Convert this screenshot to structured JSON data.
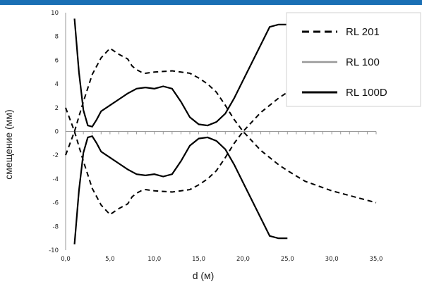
{
  "theme": {
    "top_bar_color": "#1a6fb4"
  },
  "chart_data": {
    "type": "line",
    "title": "",
    "xlabel": "d (м)",
    "ylabel": "смещение (мм)",
    "xlim": [
      0,
      35
    ],
    "ylim": [
      -10,
      10
    ],
    "x_ticks": [
      "0,0",
      "5,0",
      "10,0",
      "15,0",
      "20,0",
      "25,0",
      "30,0",
      "35,0"
    ],
    "y_ticks": [
      "10",
      "8",
      "6",
      "4",
      "2",
      "0",
      "-2",
      "-4",
      "-6",
      "-8",
      "-10"
    ],
    "grid": false,
    "legend_position": "top-right",
    "series": [
      {
        "name": "RL 201",
        "style": "dashed",
        "color": "#000000",
        "x": [
          0,
          0.5,
          1.0,
          2.0,
          3.0,
          4.0,
          5.0,
          6.0,
          7.0,
          7.5,
          8.0,
          8.5,
          9.0,
          10.0,
          12.0,
          14.0,
          15.0,
          16.0,
          17.0,
          18.0,
          18.5,
          19.0,
          19.5,
          20.0,
          21.0,
          22.0,
          23.0,
          24.0,
          25.0,
          27.0,
          30.0,
          33.0,
          35.0
        ],
        "y": [
          2.0,
          1.0,
          0.0,
          2.5,
          4.8,
          6.2,
          7.0,
          6.5,
          6.1,
          5.5,
          5.2,
          5.0,
          4.9,
          5.0,
          5.1,
          4.9,
          4.5,
          4.0,
          3.3,
          2.2,
          1.6,
          1.0,
          0.5,
          0.0,
          -0.8,
          -1.6,
          -2.2,
          -2.8,
          -3.3,
          -4.2,
          -5.0,
          -5.6,
          -6.0
        ],
        "mirrored": true
      },
      {
        "name": "RL 100",
        "style": "solid",
        "color": "#999999",
        "x": [],
        "y": []
      },
      {
        "name": "RL 100D",
        "style": "solid-thick",
        "color": "#000000",
        "x": [
          1.0,
          1.5,
          2.0,
          2.5,
          3.0,
          3.5,
          4.0,
          5.0,
          6.0,
          7.0,
          8.0,
          9.0,
          10.0,
          11.0,
          12.0,
          13.0,
          14.0,
          15.0,
          16.0,
          17.0,
          18.0,
          19.0,
          20.0,
          21.0,
          22.0,
          23.0,
          24.0,
          25.0
        ],
        "y": [
          9.5,
          5.0,
          1.8,
          0.5,
          0.4,
          1.0,
          1.7,
          2.2,
          2.7,
          3.2,
          3.6,
          3.7,
          3.6,
          3.8,
          3.6,
          2.5,
          1.2,
          0.6,
          0.5,
          0.8,
          1.5,
          2.8,
          4.3,
          5.8,
          7.3,
          8.8,
          9.0,
          9.0
        ],
        "mirrored": true
      }
    ]
  }
}
